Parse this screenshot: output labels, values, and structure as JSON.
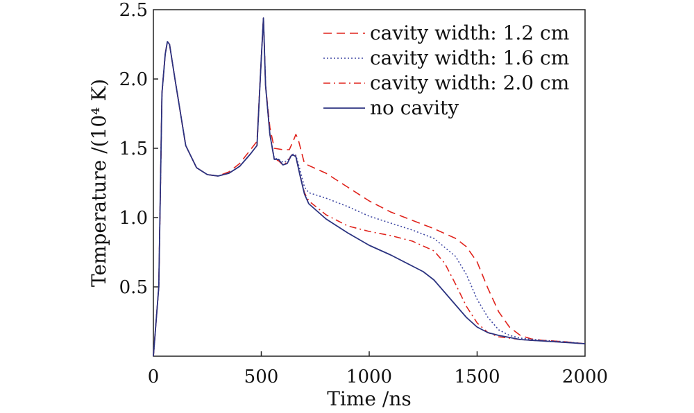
{
  "chart_data": {
    "type": "line",
    "xlabel": "Time /ns",
    "ylabel": "Temperature /(10⁴ K)",
    "xlim": [
      0,
      2000
    ],
    "ylim": [
      0,
      2.5
    ],
    "xticks": [
      0,
      500,
      1000,
      1500,
      2000
    ],
    "xtick_labels": [
      "0",
      "500",
      "1000",
      "1500",
      "2000"
    ],
    "yticks": [
      0.5,
      1.0,
      1.5,
      2.0,
      2.5
    ],
    "ytick_labels": [
      "0.5",
      "1.0",
      "1.5",
      "2.0",
      "2.5"
    ],
    "grid": false,
    "legend_position": "top-right",
    "series": [
      {
        "name": "cavity width: 1.2 cm",
        "color": "#e0231c",
        "style": "dashed",
        "x": [
          0,
          25,
          40,
          55,
          65,
          75,
          100,
          150,
          200,
          250,
          300,
          350,
          400,
          450,
          480,
          500,
          510,
          520,
          540,
          560,
          600,
          630,
          650,
          660,
          670,
          690,
          700,
          800,
          900,
          1000,
          1100,
          1200,
          1300,
          1400,
          1450,
          1500,
          1550,
          1600,
          1650,
          1700,
          1750,
          1800,
          1900,
          2000
        ],
        "y": [
          0.0,
          0.5,
          1.9,
          2.18,
          2.27,
          2.25,
          2.0,
          1.52,
          1.36,
          1.31,
          1.3,
          1.33,
          1.39,
          1.49,
          1.55,
          2.15,
          2.44,
          1.95,
          1.65,
          1.5,
          1.49,
          1.49,
          1.56,
          1.6,
          1.57,
          1.45,
          1.39,
          1.32,
          1.22,
          1.12,
          1.04,
          0.98,
          0.92,
          0.85,
          0.79,
          0.68,
          0.49,
          0.32,
          0.21,
          0.15,
          0.125,
          0.115,
          0.105,
          0.09
        ]
      },
      {
        "name": "cavity width: 1.6 cm",
        "color": "#3f47a3",
        "style": "dotted",
        "x": [
          0,
          25,
          40,
          55,
          65,
          75,
          100,
          150,
          200,
          250,
          300,
          350,
          400,
          450,
          480,
          500,
          510,
          520,
          540,
          560,
          580,
          600,
          620,
          640,
          650,
          660,
          680,
          700,
          720,
          800,
          900,
          1000,
          1100,
          1200,
          1300,
          1400,
          1450,
          1500,
          1550,
          1600,
          1650,
          1700,
          1800,
          1900,
          2000
        ],
        "y": [
          0.0,
          0.5,
          1.9,
          2.18,
          2.27,
          2.25,
          2.0,
          1.52,
          1.36,
          1.31,
          1.3,
          1.32,
          1.37,
          1.46,
          1.52,
          2.15,
          2.44,
          1.95,
          1.6,
          1.43,
          1.42,
          1.4,
          1.41,
          1.45,
          1.46,
          1.45,
          1.34,
          1.22,
          1.18,
          1.14,
          1.08,
          1.01,
          0.96,
          0.91,
          0.85,
          0.72,
          0.59,
          0.41,
          0.28,
          0.19,
          0.15,
          0.13,
          0.115,
          0.105,
          0.09
        ]
      },
      {
        "name": "cavity width: 2.0 cm",
        "color": "#e0231c",
        "style": "dashdot",
        "x": [
          0,
          25,
          40,
          55,
          65,
          75,
          100,
          150,
          200,
          250,
          300,
          350,
          400,
          450,
          480,
          500,
          510,
          520,
          540,
          560,
          580,
          600,
          620,
          640,
          650,
          660,
          680,
          700,
          720,
          800,
          900,
          1000,
          1100,
          1200,
          1300,
          1350,
          1400,
          1450,
          1500,
          1550,
          1600,
          1700,
          1800,
          1900,
          2000
        ],
        "y": [
          0.0,
          0.5,
          1.9,
          2.18,
          2.27,
          2.25,
          2.0,
          1.52,
          1.36,
          1.31,
          1.3,
          1.32,
          1.37,
          1.46,
          1.52,
          2.15,
          2.44,
          1.95,
          1.6,
          1.42,
          1.41,
          1.38,
          1.4,
          1.45,
          1.46,
          1.44,
          1.3,
          1.18,
          1.12,
          1.02,
          0.94,
          0.9,
          0.87,
          0.83,
          0.76,
          0.67,
          0.52,
          0.36,
          0.24,
          0.17,
          0.14,
          0.12,
          0.11,
          0.1,
          0.09
        ]
      },
      {
        "name": "no cavity",
        "color": "#2b3380",
        "style": "solid",
        "x": [
          0,
          25,
          40,
          55,
          65,
          75,
          100,
          150,
          200,
          250,
          300,
          350,
          400,
          450,
          480,
          500,
          510,
          520,
          540,
          560,
          580,
          600,
          620,
          640,
          650,
          660,
          680,
          700,
          720,
          800,
          900,
          1000,
          1100,
          1200,
          1250,
          1300,
          1350,
          1400,
          1450,
          1500,
          1550,
          1600,
          1700,
          1800,
          1900,
          2000
        ],
        "y": [
          0.0,
          0.5,
          1.9,
          2.18,
          2.27,
          2.25,
          2.0,
          1.52,
          1.36,
          1.31,
          1.3,
          1.32,
          1.37,
          1.46,
          1.52,
          2.15,
          2.44,
          1.95,
          1.6,
          1.42,
          1.42,
          1.38,
          1.39,
          1.45,
          1.45,
          1.44,
          1.3,
          1.17,
          1.1,
          0.99,
          0.89,
          0.8,
          0.73,
          0.65,
          0.61,
          0.55,
          0.46,
          0.37,
          0.28,
          0.21,
          0.17,
          0.15,
          0.12,
          0.11,
          0.1,
          0.09
        ]
      }
    ]
  }
}
